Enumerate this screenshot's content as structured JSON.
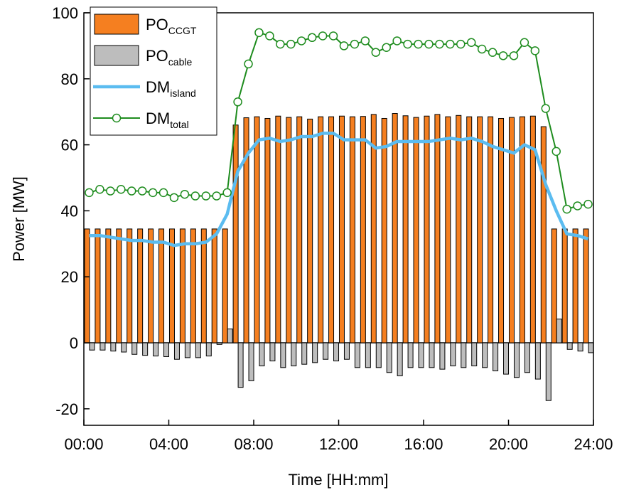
{
  "chart_data": {
    "type": "bar",
    "x_label": "Time [HH:mm]",
    "y_label": "Power [MW]",
    "x": [
      0.25,
      0.75,
      1.25,
      1.75,
      2.25,
      2.75,
      3.25,
      3.75,
      4.25,
      4.75,
      5.25,
      5.75,
      6.25,
      6.75,
      7.25,
      7.75,
      8.25,
      8.75,
      9.25,
      9.75,
      10.25,
      10.75,
      11.25,
      11.75,
      12.25,
      12.75,
      13.25,
      13.75,
      14.25,
      14.75,
      15.25,
      15.75,
      16.25,
      16.75,
      17.25,
      17.75,
      18.25,
      18.75,
      19.25,
      19.75,
      20.25,
      20.75,
      21.25,
      21.75,
      22.25,
      22.75,
      23.25,
      23.75
    ],
    "xlim": [
      0,
      24
    ],
    "xticks": [
      {
        "value": 0,
        "label": "00:00"
      },
      {
        "value": 4,
        "label": "04:00"
      },
      {
        "value": 8,
        "label": "08:00"
      },
      {
        "value": 12,
        "label": "12:00"
      },
      {
        "value": 16,
        "label": "16:00"
      },
      {
        "value": 20,
        "label": "20:00"
      },
      {
        "value": 24,
        "label": "24:00"
      }
    ],
    "ylim": [
      -25,
      100
    ],
    "yticks": [
      -20,
      0,
      20,
      40,
      60,
      80,
      100
    ],
    "legend": "top-left",
    "series": [
      {
        "name": "PO",
        "subscript": "CCGT",
        "type": "bar",
        "color": "#f57f20",
        "values": [
          34.5,
          34.5,
          34.5,
          34.5,
          34.5,
          34.5,
          34.5,
          34.5,
          34.5,
          34.5,
          34.5,
          34.5,
          34.5,
          34.5,
          66,
          68.2,
          68.5,
          68,
          68.7,
          68.3,
          68.5,
          67.8,
          68.5,
          68.5,
          68.7,
          68.5,
          68.6,
          69.2,
          68,
          69.5,
          68.8,
          68.3,
          68.7,
          69.2,
          68.5,
          68.9,
          68.5,
          68.5,
          68.5,
          68,
          68.3,
          68.5,
          68.7,
          65.5,
          34.5,
          34.5,
          34.5,
          34.5
        ]
      },
      {
        "name": "PO",
        "subscript": "cable",
        "type": "bar",
        "color": "#bdbdbd",
        "values": [
          -2.2,
          -2.2,
          -2.5,
          -2.8,
          -3.5,
          -3.8,
          -4,
          -4.2,
          -5,
          -4.5,
          -4.5,
          -4,
          -0.5,
          4.2,
          -13.5,
          -11.5,
          -7,
          -5.5,
          -7.5,
          -7,
          -6.5,
          -6,
          -5,
          -5.5,
          -5,
          -7.5,
          -7.5,
          -7.5,
          -9,
          -10,
          -7.5,
          -7.5,
          -7.5,
          -8,
          -7,
          -7.5,
          -7,
          -7.5,
          -8.5,
          -9.5,
          -10.5,
          -9,
          -11,
          -17.5,
          7.2,
          -2,
          -2.5,
          -3
        ]
      },
      {
        "name": "DM",
        "subscript": "island",
        "type": "line",
        "color": "#5bbcf0",
        "values": [
          32.5,
          32.5,
          32,
          31.5,
          31,
          31,
          30.5,
          30.5,
          29.5,
          30,
          30,
          30.5,
          33,
          39,
          52,
          57.5,
          61.5,
          62,
          61,
          61.5,
          62.5,
          62.5,
          63.5,
          63.5,
          61.5,
          61.5,
          61.5,
          59,
          59.5,
          61,
          61,
          61,
          61,
          61.5,
          62,
          61.5,
          62,
          61,
          59.5,
          58.5,
          57.5,
          60,
          58.5,
          48,
          40,
          33,
          32.5,
          31.5
        ]
      },
      {
        "name": "DM",
        "subscript": "total",
        "type": "line",
        "marker": "circle",
        "color": "#1e8c1e",
        "values": [
          45.5,
          46.5,
          46,
          46.5,
          46,
          46,
          45.5,
          45.5,
          44,
          45,
          44.5,
          44.5,
          44.5,
          45.5,
          73,
          84.5,
          94,
          93,
          90.5,
          90.5,
          91.5,
          92.5,
          93,
          93,
          90,
          90.5,
          91.5,
          88,
          89.5,
          91.5,
          90.5,
          90.5,
          90.5,
          90.5,
          90.5,
          90.5,
          91,
          89,
          88,
          87,
          87,
          91,
          88.5,
          71,
          58,
          40.5,
          41.5,
          42
        ]
      }
    ]
  }
}
